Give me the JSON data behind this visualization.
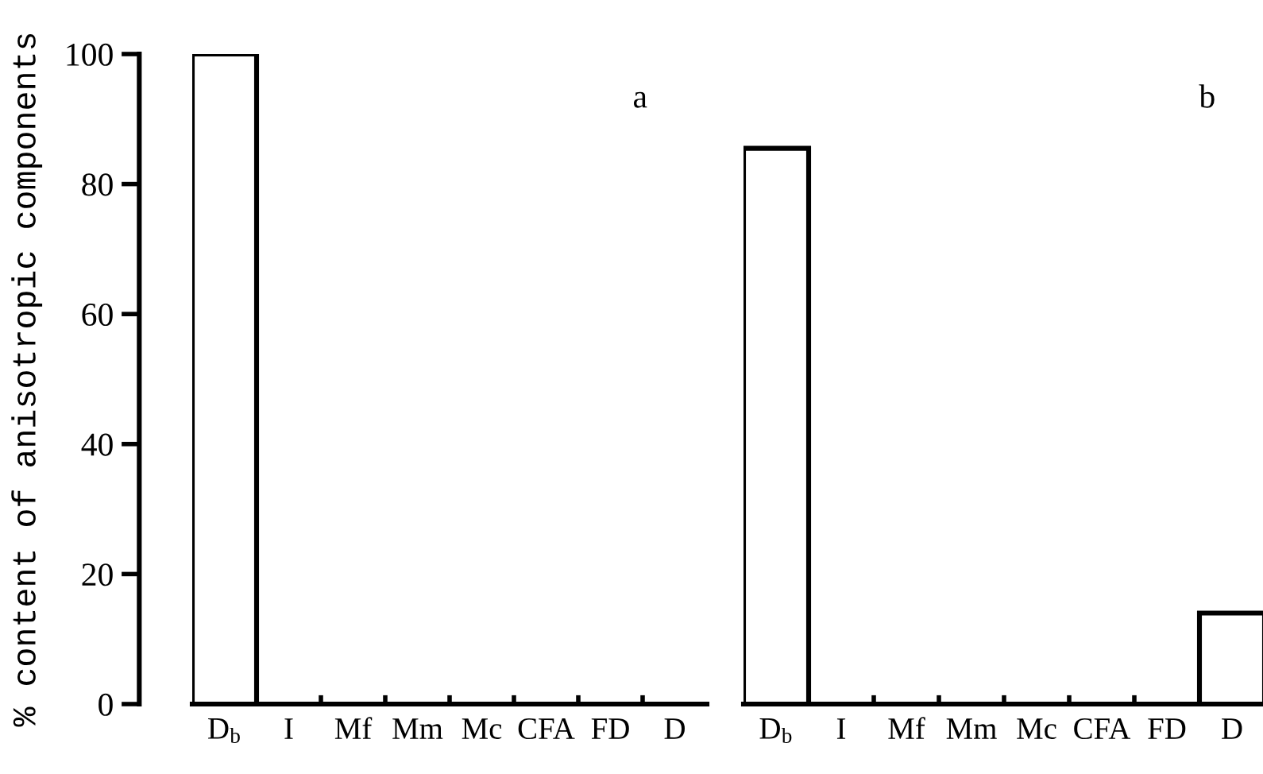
{
  "chart_data": [
    {
      "type": "bar",
      "ylabel": "% content of anisotropic components",
      "annotations": [
        "a"
      ],
      "categories": [
        "D$_{b}$",
        "I",
        "Mf",
        "Mm",
        "Mc",
        "CFA",
        "FD",
        "D"
      ],
      "values": [
        100,
        0,
        0,
        0,
        0,
        0,
        0,
        0
      ],
      "color": "#ffffff",
      "ylim": [
        0,
        100
      ],
      "yticks": [
        0,
        20,
        40,
        60,
        80,
        100
      ],
      "grid": false
    },
    {
      "type": "bar",
      "annotations": [
        "b"
      ],
      "categories": [
        "D$_{b}$",
        "I",
        "Mf",
        "Mm",
        "Mc",
        "CFA",
        "FD",
        "D"
      ],
      "values": [
        85.5,
        0,
        0,
        0,
        0,
        0,
        0,
        14
      ],
      "color": "#ffffff",
      "ylim": [
        0,
        100
      ],
      "tick_labels": "x",
      "grid": false
    }
  ]
}
